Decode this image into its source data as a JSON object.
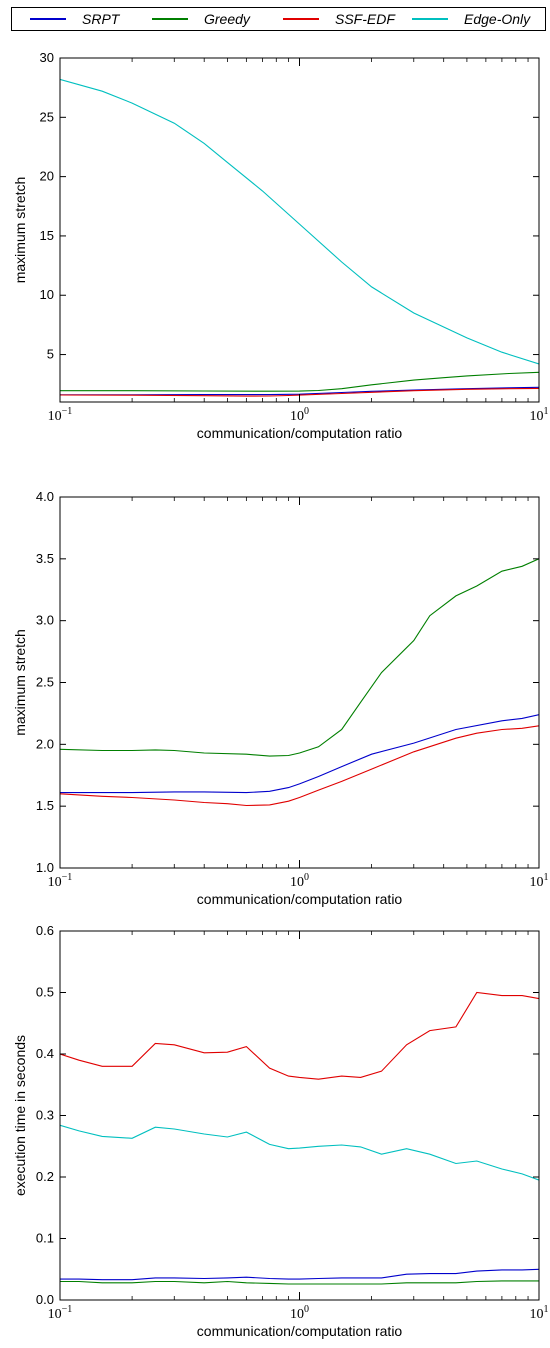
{
  "colors": {
    "SRPT": "#0000cc",
    "Greedy": "#007f00",
    "SSF-EDF": "#e00000",
    "Edge-Only": "#00bfbf"
  },
  "legend": {
    "placement": "top",
    "entries": [
      "SRPT",
      "Greedy",
      "SSF-EDF",
      "Edge-Only"
    ]
  },
  "chart_data": [
    {
      "type": "line",
      "xscale": "log",
      "xlim": [
        0.1,
        10
      ],
      "ylim": [
        1,
        30
      ],
      "xlabel": "communication/computation ratio",
      "ylabel": "maximum stretch",
      "xticks": [
        "10^-1",
        "10^0",
        "10^1"
      ],
      "yticks": [
        5,
        10,
        15,
        20,
        25,
        30
      ],
      "series": [
        {
          "name": "SRPT",
          "x": [
            0.1,
            0.2,
            0.4,
            0.75,
            1.0,
            1.5,
            2.0,
            3.0,
            5.0,
            7.5,
            10
          ],
          "y": [
            1.61,
            1.61,
            1.62,
            1.62,
            1.66,
            1.8,
            1.9,
            2.0,
            2.12,
            2.2,
            2.24
          ]
        },
        {
          "name": "Greedy",
          "x": [
            0.1,
            0.2,
            0.4,
            0.75,
            1.0,
            1.2,
            1.5,
            2.0,
            3.0,
            4.0,
            5.0,
            7.5,
            10
          ],
          "y": [
            1.95,
            1.95,
            1.93,
            1.91,
            1.92,
            1.97,
            2.12,
            2.45,
            2.85,
            3.05,
            3.2,
            3.4,
            3.5
          ]
        },
        {
          "name": "SSF-EDF",
          "x": [
            0.1,
            0.2,
            0.4,
            0.6,
            0.75,
            0.9,
            1.0,
            1.5,
            2.0,
            3.0,
            5.0,
            7.5,
            10
          ],
          "y": [
            1.59,
            1.57,
            1.53,
            1.5,
            1.51,
            1.55,
            1.58,
            1.72,
            1.82,
            1.95,
            2.07,
            2.12,
            2.15
          ]
        },
        {
          "name": "Edge-Only",
          "x": [
            0.1,
            0.15,
            0.2,
            0.3,
            0.4,
            0.5,
            0.7,
            1.0,
            1.5,
            2.0,
            3.0,
            5.0,
            7.0,
            10
          ],
          "y": [
            28.2,
            27.2,
            26.2,
            24.5,
            22.8,
            21.2,
            18.8,
            16.0,
            12.8,
            10.7,
            8.5,
            6.4,
            5.2,
            4.2
          ]
        }
      ]
    },
    {
      "type": "line",
      "xscale": "log",
      "xlim": [
        0.1,
        10
      ],
      "ylim": [
        1.0,
        4.0
      ],
      "xlabel": "communication/computation ratio",
      "ylabel": "maximum stretch",
      "xticks": [
        "10^-1",
        "10^0",
        "10^1"
      ],
      "yticks": [
        "1.0",
        "1.5",
        "2.0",
        "2.5",
        "3.0",
        "3.5",
        "4.0"
      ],
      "series": [
        {
          "name": "SRPT",
          "x": [
            0.1,
            0.15,
            0.2,
            0.3,
            0.4,
            0.6,
            0.75,
            0.9,
            1.0,
            1.2,
            1.5,
            2.0,
            3.0,
            4.5,
            7.0,
            8.5,
            10
          ],
          "y": [
            1.61,
            1.61,
            1.61,
            1.615,
            1.615,
            1.61,
            1.62,
            1.65,
            1.68,
            1.74,
            1.82,
            1.92,
            2.01,
            2.12,
            2.19,
            2.21,
            2.24
          ]
        },
        {
          "name": "Greedy",
          "x": [
            0.1,
            0.15,
            0.2,
            0.25,
            0.3,
            0.4,
            0.6,
            0.75,
            0.9,
            1.0,
            1.2,
            1.5,
            1.8,
            2.2,
            3.0,
            3.5,
            4.5,
            5.5,
            7.0,
            8.5,
            10
          ],
          "y": [
            1.96,
            1.95,
            1.95,
            1.955,
            1.95,
            1.93,
            1.92,
            1.905,
            1.91,
            1.93,
            1.98,
            2.12,
            2.34,
            2.58,
            2.84,
            3.04,
            3.2,
            3.28,
            3.4,
            3.44,
            3.5
          ]
        },
        {
          "name": "SSF-EDF",
          "x": [
            0.1,
            0.15,
            0.2,
            0.3,
            0.4,
            0.5,
            0.6,
            0.75,
            0.9,
            1.0,
            1.2,
            1.5,
            2.0,
            3.0,
            4.5,
            5.5,
            7.0,
            8.5,
            10
          ],
          "y": [
            1.6,
            1.58,
            1.57,
            1.55,
            1.53,
            1.52,
            1.505,
            1.51,
            1.54,
            1.57,
            1.63,
            1.7,
            1.8,
            1.94,
            2.05,
            2.09,
            2.12,
            2.13,
            2.15
          ]
        }
      ]
    },
    {
      "type": "line",
      "xscale": "log",
      "xlim": [
        0.1,
        10
      ],
      "ylim": [
        0.0,
        0.6
      ],
      "xlabel": "communication/computation ratio",
      "ylabel": "execution time in seconds",
      "xticks": [
        "10^-1",
        "10^0",
        "10^1"
      ],
      "yticks": [
        "0.0",
        "0.1",
        "0.2",
        "0.3",
        "0.4",
        "0.5",
        "0.6"
      ],
      "series": [
        {
          "name": "SRPT",
          "x": [
            0.1,
            0.12,
            0.15,
            0.2,
            0.25,
            0.3,
            0.4,
            0.5,
            0.6,
            0.75,
            0.9,
            1.0,
            1.2,
            1.5,
            1.8,
            2.2,
            2.8,
            3.5,
            4.5,
            5.5,
            7.0,
            8.5,
            10
          ],
          "y": [
            0.034,
            0.034,
            0.033,
            0.033,
            0.036,
            0.036,
            0.035,
            0.036,
            0.037,
            0.035,
            0.034,
            0.034,
            0.035,
            0.036,
            0.036,
            0.036,
            0.042,
            0.043,
            0.043,
            0.047,
            0.049,
            0.049,
            0.05
          ]
        },
        {
          "name": "Greedy",
          "x": [
            0.1,
            0.12,
            0.15,
            0.2,
            0.25,
            0.3,
            0.4,
            0.5,
            0.6,
            0.75,
            0.9,
            1.0,
            1.2,
            1.5,
            1.8,
            2.2,
            2.8,
            3.5,
            4.5,
            5.5,
            7.0,
            8.5,
            10
          ],
          "y": [
            0.03,
            0.03,
            0.028,
            0.028,
            0.03,
            0.03,
            0.028,
            0.03,
            0.028,
            0.027,
            0.026,
            0.026,
            0.026,
            0.026,
            0.026,
            0.026,
            0.028,
            0.028,
            0.028,
            0.03,
            0.031,
            0.031,
            0.031
          ]
        },
        {
          "name": "SSF-EDF",
          "x": [
            0.1,
            0.12,
            0.15,
            0.2,
            0.25,
            0.3,
            0.4,
            0.5,
            0.6,
            0.75,
            0.9,
            1.0,
            1.2,
            1.5,
            1.8,
            2.2,
            2.8,
            3.5,
            4.5,
            5.5,
            7.0,
            8.5,
            10
          ],
          "y": [
            0.4,
            0.39,
            0.38,
            0.38,
            0.417,
            0.415,
            0.402,
            0.403,
            0.412,
            0.377,
            0.364,
            0.362,
            0.359,
            0.364,
            0.362,
            0.372,
            0.415,
            0.438,
            0.444,
            0.5,
            0.495,
            0.495,
            0.49
          ]
        },
        {
          "name": "Edge-Only",
          "x": [
            0.1,
            0.12,
            0.15,
            0.2,
            0.25,
            0.3,
            0.4,
            0.5,
            0.6,
            0.75,
            0.9,
            1.0,
            1.2,
            1.5,
            1.8,
            2.2,
            2.8,
            3.5,
            4.5,
            5.5,
            7.0,
            8.5,
            10
          ],
          "y": [
            0.284,
            0.275,
            0.266,
            0.263,
            0.281,
            0.278,
            0.27,
            0.265,
            0.273,
            0.253,
            0.246,
            0.247,
            0.25,
            0.252,
            0.249,
            0.237,
            0.246,
            0.237,
            0.222,
            0.226,
            0.213,
            0.205,
            0.195
          ]
        }
      ]
    }
  ]
}
